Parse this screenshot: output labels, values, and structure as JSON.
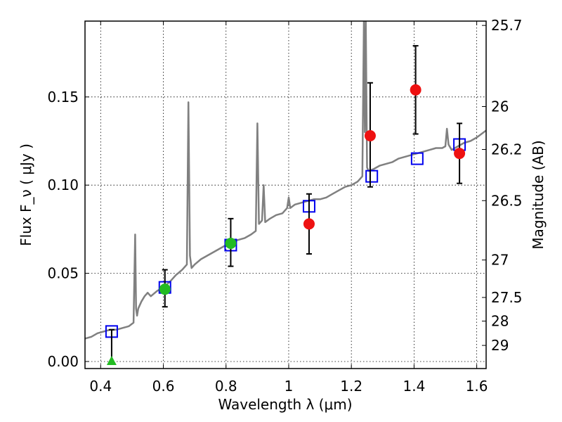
{
  "chart_data": {
    "type": "scatter",
    "xlabel": "Wavelength λ (μm)",
    "ylabel": "Flux F_ν ( μJy )",
    "y2label": "Magnitude (AB)",
    "xlim": [
      0.35,
      1.63
    ],
    "ylim": [
      -0.004,
      0.193
    ],
    "grid": true,
    "x_ticks": [
      0.4,
      0.6,
      0.8,
      1.0,
      1.2,
      1.4,
      1.6
    ],
    "x_tick_labels": [
      "0.4",
      "0.6",
      "0.8",
      "1",
      "1.2",
      "1.4",
      "1.6"
    ],
    "y_ticks": [
      0.0,
      0.05,
      0.1,
      0.15
    ],
    "y_tick_labels": [
      "0.00",
      "0.05",
      "0.10",
      "0.15"
    ],
    "y2_ticks": [
      {
        "label": "25.7",
        "mag": 25.7
      },
      {
        "label": "26",
        "mag": 26.0
      },
      {
        "label": "26.2",
        "mag": 26.2
      },
      {
        "label": "26.5",
        "mag": 26.5
      },
      {
        "label": "27",
        "mag": 27.0
      },
      {
        "label": "27.5",
        "mag": 27.5
      },
      {
        "label": "28",
        "mag": 28.0
      },
      {
        "label": "29",
        "mag": 29.0
      }
    ],
    "colors": {
      "model": "#808080",
      "model_points": "#0000ee",
      "detections": "#ee1111",
      "optical": "#22bb22",
      "upper_limit": "#22bb22",
      "errorbar": "#000000"
    },
    "series": [
      {
        "kind": "model_spectrum",
        "x": [
          0.35,
          0.37,
          0.39,
          0.41,
          0.43,
          0.45,
          0.47,
          0.49,
          0.505,
          0.51,
          0.513,
          0.516,
          0.52,
          0.53,
          0.54,
          0.55,
          0.56,
          0.58,
          0.6,
          0.62,
          0.64,
          0.66,
          0.675,
          0.68,
          0.685,
          0.69,
          0.7,
          0.72,
          0.74,
          0.76,
          0.78,
          0.8,
          0.82,
          0.84,
          0.86,
          0.88,
          0.895,
          0.9,
          0.905,
          0.915,
          0.92,
          0.925,
          0.94,
          0.96,
          0.98,
          0.995,
          1.0,
          1.005,
          1.02,
          1.04,
          1.06,
          1.08,
          1.1,
          1.12,
          1.14,
          1.16,
          1.18,
          1.2,
          1.22,
          1.235,
          1.24,
          1.243,
          1.246,
          1.25,
          1.255,
          1.27,
          1.29,
          1.31,
          1.33,
          1.35,
          1.37,
          1.39,
          1.41,
          1.43,
          1.45,
          1.47,
          1.49,
          1.5,
          1.505,
          1.51,
          1.52,
          1.54,
          1.56,
          1.58,
          1.6,
          1.63
        ],
        "y": [
          0.013,
          0.014,
          0.016,
          0.017,
          0.018,
          0.018,
          0.019,
          0.02,
          0.022,
          0.072,
          0.03,
          0.026,
          0.03,
          0.034,
          0.037,
          0.039,
          0.037,
          0.04,
          0.042,
          0.045,
          0.049,
          0.052,
          0.055,
          0.147,
          0.06,
          0.053,
          0.055,
          0.058,
          0.06,
          0.062,
          0.064,
          0.066,
          0.068,
          0.069,
          0.07,
          0.072,
          0.074,
          0.135,
          0.078,
          0.08,
          0.1,
          0.079,
          0.081,
          0.083,
          0.084,
          0.087,
          0.093,
          0.087,
          0.089,
          0.09,
          0.091,
          0.092,
          0.092,
          0.093,
          0.095,
          0.097,
          0.099,
          0.1,
          0.102,
          0.105,
          0.193,
          0.13,
          0.193,
          0.11,
          0.108,
          0.109,
          0.111,
          0.112,
          0.113,
          0.115,
          0.116,
          0.117,
          0.118,
          0.119,
          0.12,
          0.121,
          0.121,
          0.122,
          0.132,
          0.123,
          0.12,
          0.122,
          0.124,
          0.125,
          0.127,
          0.131
        ]
      },
      {
        "kind": "model_points",
        "x": [
          0.435,
          0.605,
          0.815,
          1.065,
          1.265,
          1.41,
          1.545
        ],
        "y": [
          0.017,
          0.042,
          0.066,
          0.088,
          0.105,
          0.115,
          0.123
        ]
      },
      {
        "kind": "optical_detections",
        "x": [
          0.605,
          0.815
        ],
        "y": [
          0.041,
          0.067
        ],
        "err_low": [
          0.01,
          0.013
        ],
        "err_high": [
          0.011,
          0.014
        ]
      },
      {
        "kind": "nir_detections",
        "x": [
          1.065,
          1.26,
          1.405,
          1.545
        ],
        "y": [
          0.078,
          0.128,
          0.154,
          0.118
        ],
        "err_low": [
          0.017,
          0.029,
          0.025,
          0.017
        ],
        "err_high": [
          0.017,
          0.03,
          0.025,
          0.017
        ]
      },
      {
        "kind": "upper_limit",
        "x": [
          0.435
        ],
        "y": [
          0.0
        ],
        "err_high": [
          0.018
        ]
      }
    ]
  }
}
